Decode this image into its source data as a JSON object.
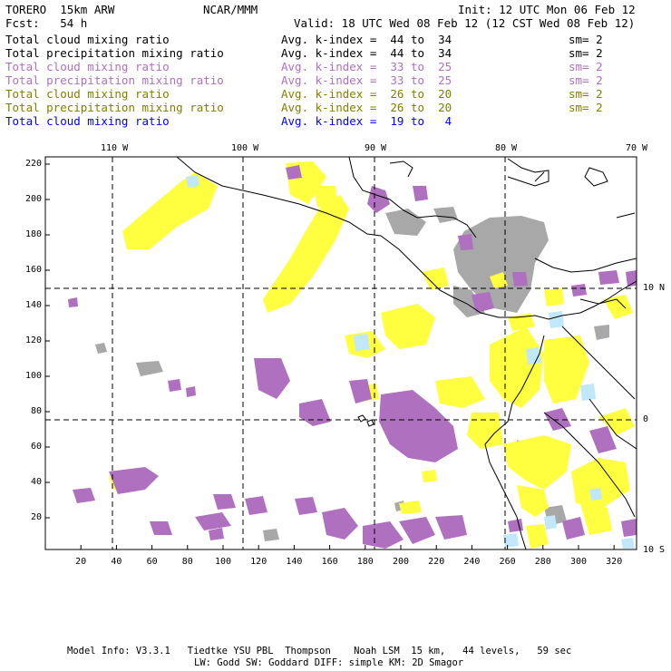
{
  "header": {
    "model": "TORERO  15km ARW",
    "org": "NCAR/MMM",
    "init": "Init: 12 UTC Mon 06 Feb 12",
    "fcst": "Fcst:   54 h",
    "valid": "Valid: 18 UTC Wed 08 Feb 12 (12 CST Wed 08 Feb 12)"
  },
  "fields": [
    {
      "name": "Total cloud mixing ratio",
      "range": "Avg. k-index =  44 to  34",
      "sm": "sm= 2",
      "color": "#000000"
    },
    {
      "name": "Total precipitation mixing ratio",
      "range": "Avg. k-index =  44 to  34",
      "sm": "sm= 2",
      "color": "#000000"
    },
    {
      "name": "Total cloud mixing ratio",
      "range": "Avg. k-index =  33 to  25",
      "sm": "sm= 2",
      "color": "#b070c0"
    },
    {
      "name": "Total precipitation mixing ratio",
      "range": "Avg. k-index =  33 to  25",
      "sm": "sm= 2",
      "color": "#b070c0"
    },
    {
      "name": "Total cloud mixing ratio",
      "range": "Avg. k-index =  26 to  20",
      "sm": "sm= 2",
      "color": "#808000"
    },
    {
      "name": "Total precipitation mixing ratio",
      "range": "Avg. k-index =  26 to  20",
      "sm": "sm= 2",
      "color": "#808000"
    },
    {
      "name": "Total cloud mixing ratio",
      "range": "Avg. k-index =  19 to   4",
      "sm": "",
      "color": "#0000ff"
    }
  ],
  "map": {
    "top_lon_labels": [
      "110 W",
      "100 W",
      "90 W",
      "80 W",
      "70 W"
    ],
    "right_lat_labels": [
      "10 N",
      "0",
      "10 S"
    ],
    "y_ticks": [
      "20",
      "40",
      "60",
      "80",
      "100",
      "120",
      "140",
      "160",
      "180",
      "200",
      "220"
    ],
    "x_ticks": [
      "20",
      "40",
      "60",
      "80",
      "100",
      "120",
      "140",
      "160",
      "180",
      "200",
      "220",
      "240",
      "260",
      "280",
      "300",
      "320"
    ],
    "colors": {
      "grey": "#a8a8a8",
      "purple": "#b070c0",
      "yellow": "#ffff40",
      "lightblue": "#c0e8f8"
    }
  },
  "footer": {
    "line1": "Model Info: V3.3.1   Tiedtke YSU PBL  Thompson    Noah LSM  15 km,   44 levels,   59 sec",
    "line2": "LW: Godd SW: Goddard DIFF: simple KM: 2D Smagor"
  }
}
